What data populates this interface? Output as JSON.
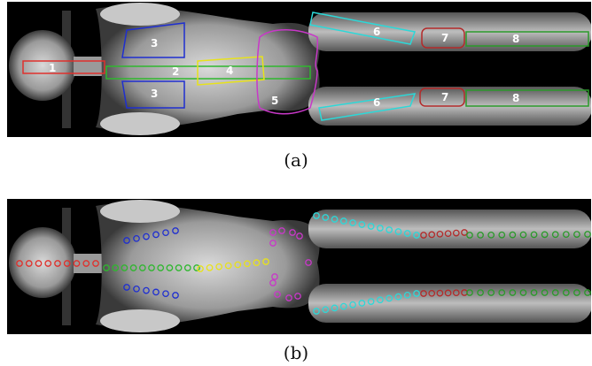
{
  "colors": {
    "background": "#ffffff",
    "image_bg": "#000000",
    "region_1": "#e0302c",
    "region_2": "#2fb72f",
    "region_3": "#1f2fd0",
    "region_4": "#e8e21a",
    "region_5": "#c838c8",
    "region_6": "#2cd8d8",
    "region_7": "#b42a2a",
    "region_8": "#2a9a2a"
  },
  "panel_a": {
    "caption": "(a)",
    "region_labels": [
      "1",
      "2",
      "3",
      "3",
      "4",
      "5",
      "6",
      "6",
      "7",
      "7",
      "8",
      "8"
    ]
  },
  "panel_b": {
    "caption": "(b)"
  }
}
